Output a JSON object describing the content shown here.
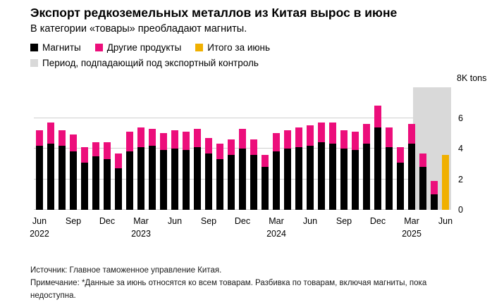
{
  "chart_data": {
    "type": "bar",
    "stacked": true,
    "title": "Экспорт редкоземельных металлов из Китая вырос в июне",
    "subtitle": "В категории «товары» преобладают магниты.",
    "legend": [
      {
        "label": "Магниты",
        "color": "#000000"
      },
      {
        "label": "Другие продукты",
        "color": "#ec0e7b"
      },
      {
        "label": "Итого за июнь",
        "color": "#f0b000"
      },
      {
        "label": "Период, подпадающий под экспортный контроль",
        "color": "#d9d9d9"
      }
    ],
    "yaxis": {
      "min": 0,
      "max": 8,
      "ticks": [
        0,
        2,
        4,
        6
      ],
      "top_label": "8K tons"
    },
    "x": [
      "Jun 2022",
      "Jul 2022",
      "Aug 2022",
      "Sep 2022",
      "Oct 2022",
      "Nov 2022",
      "Dec 2022",
      "Jan 2023",
      "Feb 2023",
      "Mar 2023",
      "Apr 2023",
      "May 2023",
      "Jun 2023",
      "Jul 2023",
      "Aug 2023",
      "Sep 2023",
      "Oct 2023",
      "Nov 2023",
      "Dec 2023",
      "Jan 2024",
      "Feb 2024",
      "Mar 2024",
      "Apr 2024",
      "May 2024",
      "Jun 2024",
      "Jul 2024",
      "Aug 2024",
      "Sep 2024",
      "Oct 2024",
      "Nov 2024",
      "Dec 2024",
      "Jan 2025",
      "Feb 2025",
      "Mar 2025",
      "Apr 2025",
      "May 2025",
      "Jun 2025"
    ],
    "x_ticks": [
      {
        "index": 0,
        "label": "Jun",
        "year": "2022"
      },
      {
        "index": 3,
        "label": "Sep"
      },
      {
        "index": 6,
        "label": "Dec"
      },
      {
        "index": 9,
        "label": "Mar",
        "year": "2023"
      },
      {
        "index": 12,
        "label": "Jun"
      },
      {
        "index": 15,
        "label": "Sep"
      },
      {
        "index": 18,
        "label": "Dec"
      },
      {
        "index": 21,
        "label": "Mar",
        "year": "2024"
      },
      {
        "index": 24,
        "label": "Jun"
      },
      {
        "index": 27,
        "label": "Sep"
      },
      {
        "index": 30,
        "label": "Dec"
      },
      {
        "index": 33,
        "label": "Mar",
        "year": "2025"
      },
      {
        "index": 36,
        "label": "Jun"
      }
    ],
    "series": [
      {
        "name": "Магниты",
        "color": "#000000",
        "values": [
          4.2,
          4.3,
          4.2,
          3.8,
          3.1,
          3.5,
          3.3,
          2.7,
          3.8,
          4.1,
          4.2,
          3.9,
          4.0,
          3.9,
          4.1,
          3.7,
          3.3,
          3.6,
          4.0,
          3.6,
          2.8,
          3.8,
          4.0,
          4.1,
          4.2,
          4.4,
          4.3,
          4.0,
          3.9,
          4.3,
          5.4,
          4.1,
          3.1,
          4.3,
          2.8,
          1.0,
          0
        ]
      },
      {
        "name": "Другие продукты",
        "color": "#ec0e7b",
        "values": [
          1.0,
          1.4,
          1.0,
          1.1,
          1.0,
          0.9,
          1.1,
          1.0,
          1.3,
          1.3,
          1.1,
          1.1,
          1.2,
          1.2,
          1.2,
          1.0,
          1.0,
          1.0,
          1.3,
          1.0,
          0.8,
          1.2,
          1.2,
          1.3,
          1.3,
          1.3,
          1.4,
          1.2,
          1.2,
          1.3,
          1.4,
          1.3,
          1.0,
          1.3,
          0.9,
          0.9,
          0
        ]
      },
      {
        "name": "Итого за июнь",
        "color": "#f0b000",
        "values": [
          0,
          0,
          0,
          0,
          0,
          0,
          0,
          0,
          0,
          0,
          0,
          0,
          0,
          0,
          0,
          0,
          0,
          0,
          0,
          0,
          0,
          0,
          0,
          0,
          0,
          0,
          0,
          0,
          0,
          0,
          0,
          0,
          0,
          0,
          0,
          0,
          3.6
        ]
      }
    ],
    "control_period": {
      "label": "Период, подпадающий под экспортный контроль",
      "start_index": 34,
      "end_index": 36,
      "color": "#d9d9d9"
    }
  },
  "footer": {
    "source": "Источник: Главное таможенное управление Китая.",
    "note": "Примечание: *Данные за июнь относятся ко всем товарам. Разбивка по товарам, включая магниты, пока недоступна."
  }
}
